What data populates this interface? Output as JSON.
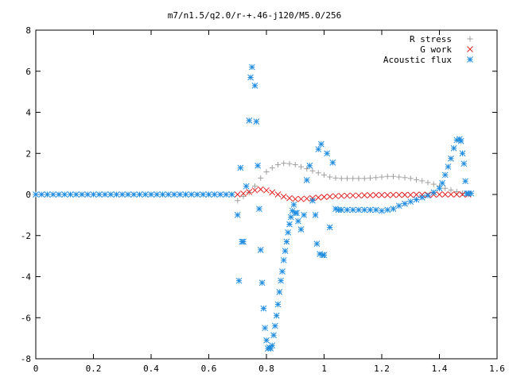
{
  "chart_data": {
    "type": "scatter",
    "title": "m7/n1.5/q2.0/r-+.46-j120/M5.0/256",
    "xlim": [
      0,
      1.6
    ],
    "ylim": [
      -8,
      8
    ],
    "xticks": [
      "0",
      "0.2",
      "0.4",
      "0.6",
      "0.8",
      "1",
      "1.2",
      "1.4",
      "1.6"
    ],
    "yticks": [
      "-8",
      "-6",
      "-4",
      "-2",
      "0",
      "2",
      "4",
      "6",
      "8"
    ],
    "grid": false,
    "legend_position": "top-right",
    "series": [
      {
        "name": "R stress",
        "marker": "plus",
        "color": "#a0a0a0",
        "x": [
          0.7,
          0.72,
          0.74,
          0.76,
          0.78,
          0.8,
          0.82,
          0.84,
          0.86,
          0.88,
          0.9,
          0.92,
          0.94,
          0.96,
          0.98,
          1.0,
          1.02,
          1.04,
          1.06,
          1.08,
          1.1,
          1.12,
          1.14,
          1.16,
          1.18,
          1.2,
          1.22,
          1.24,
          1.26,
          1.28,
          1.3,
          1.32,
          1.34,
          1.36,
          1.38,
          1.4,
          1.42,
          1.44,
          1.46,
          1.48,
          1.5
        ],
        "y": [
          -0.3,
          -0.1,
          0.1,
          0.4,
          0.8,
          1.1,
          1.3,
          1.45,
          1.52,
          1.5,
          1.45,
          1.35,
          1.25,
          1.15,
          1.05,
          0.95,
          0.85,
          0.8,
          0.78,
          0.78,
          0.78,
          0.78,
          0.78,
          0.8,
          0.82,
          0.85,
          0.88,
          0.88,
          0.85,
          0.82,
          0.78,
          0.72,
          0.66,
          0.58,
          0.5,
          0.4,
          0.3,
          0.22,
          0.14,
          0.06,
          0.0
        ]
      },
      {
        "name": "G work",
        "marker": "cross",
        "color": "#e02020",
        "x": [
          0.7,
          0.72,
          0.74,
          0.76,
          0.78,
          0.8,
          0.82,
          0.84,
          0.86,
          0.88,
          0.9,
          0.92,
          0.94,
          0.96,
          0.98,
          1.0,
          1.02,
          1.04,
          1.06,
          1.08,
          1.1,
          1.12,
          1.14,
          1.16,
          1.18,
          1.2,
          1.22,
          1.24,
          1.26,
          1.28,
          1.3,
          1.32,
          1.34,
          1.36,
          1.38,
          1.4,
          1.42,
          1.44,
          1.46,
          1.48,
          1.5
        ],
        "y": [
          0.0,
          0.05,
          0.12,
          0.2,
          0.25,
          0.2,
          0.1,
          0.0,
          -0.1,
          -0.18,
          -0.22,
          -0.22,
          -0.2,
          -0.18,
          -0.15,
          -0.12,
          -0.1,
          -0.08,
          -0.07,
          -0.06,
          -0.05,
          -0.05,
          -0.04,
          -0.04,
          -0.03,
          -0.03,
          -0.03,
          -0.02,
          -0.02,
          -0.02,
          -0.02,
          -0.01,
          -0.01,
          -0.01,
          -0.01,
          0.0,
          0.0,
          0.0,
          0.0,
          0.0,
          0.0
        ]
      },
      {
        "name": "Acoustic flux",
        "marker": "star",
        "color": "#1f8ce0",
        "x": [
          0.0,
          0.02,
          0.04,
          0.06,
          0.08,
          0.1,
          0.12,
          0.14,
          0.16,
          0.18,
          0.2,
          0.22,
          0.24,
          0.26,
          0.28,
          0.3,
          0.32,
          0.34,
          0.36,
          0.38,
          0.4,
          0.42,
          0.44,
          0.46,
          0.48,
          0.5,
          0.52,
          0.54,
          0.56,
          0.58,
          0.6,
          0.62,
          0.64,
          0.66,
          0.68,
          0.7,
          0.705,
          0.71,
          0.715,
          0.72,
          0.73,
          0.74,
          0.745,
          0.75,
          0.76,
          0.765,
          0.77,
          0.775,
          0.78,
          0.785,
          0.79,
          0.795,
          0.8,
          0.805,
          0.81,
          0.815,
          0.82,
          0.825,
          0.83,
          0.835,
          0.84,
          0.845,
          0.85,
          0.855,
          0.86,
          0.865,
          0.87,
          0.875,
          0.88,
          0.885,
          0.89,
          0.895,
          0.9,
          0.905,
          0.91,
          0.92,
          0.93,
          0.94,
          0.95,
          0.96,
          0.97,
          0.975,
          0.98,
          0.985,
          0.99,
          0.995,
          1.0,
          1.01,
          1.02,
          1.03,
          1.04,
          1.05,
          1.06,
          1.08,
          1.1,
          1.12,
          1.14,
          1.16,
          1.18,
          1.2,
          1.22,
          1.24,
          1.26,
          1.28,
          1.3,
          1.32,
          1.34,
          1.36,
          1.38,
          1.4,
          1.41,
          1.42,
          1.43,
          1.44,
          1.45,
          1.46,
          1.47,
          1.475,
          1.48,
          1.485,
          1.49,
          1.495,
          1.5,
          1.51
        ],
        "y": [
          0,
          0,
          0,
          0,
          0,
          0,
          0,
          0,
          0,
          0,
          0,
          0,
          0,
          0,
          0,
          0,
          0,
          0,
          0,
          0,
          0,
          0,
          0,
          0,
          0,
          0,
          0,
          0,
          0,
          0,
          0,
          0,
          0,
          0,
          0,
          -1.0,
          -4.2,
          1.3,
          -2.3,
          -2.3,
          0.4,
          3.6,
          5.7,
          6.2,
          5.3,
          3.55,
          1.4,
          -0.7,
          -2.7,
          -4.3,
          -5.55,
          -6.5,
          -7.1,
          -7.5,
          -7.45,
          -7.5,
          -7.35,
          -6.85,
          -6.4,
          -5.9,
          -5.35,
          -4.75,
          -4.2,
          -3.75,
          -3.2,
          -2.75,
          -2.3,
          -1.85,
          -1.45,
          -1.1,
          -0.8,
          -0.5,
          -0.9,
          -0.9,
          -1.3,
          -1.7,
          -1.0,
          0.7,
          1.4,
          -0.3,
          -1.0,
          -2.4,
          2.2,
          -2.9,
          2.45,
          -2.95,
          -2.95,
          2.0,
          -1.6,
          1.55,
          -0.7,
          -0.75,
          -0.75,
          -0.75,
          -0.75,
          -0.75,
          -0.75,
          -0.75,
          -0.75,
          -0.8,
          -0.75,
          -0.7,
          -0.55,
          -0.45,
          -0.35,
          -0.25,
          -0.15,
          -0.05,
          0.1,
          0.3,
          0.55,
          0.95,
          1.35,
          1.75,
          2.25,
          2.65,
          2.7,
          2.6,
          2.0,
          1.5,
          0.65,
          0.05,
          0.05,
          0.05
        ]
      }
    ]
  }
}
